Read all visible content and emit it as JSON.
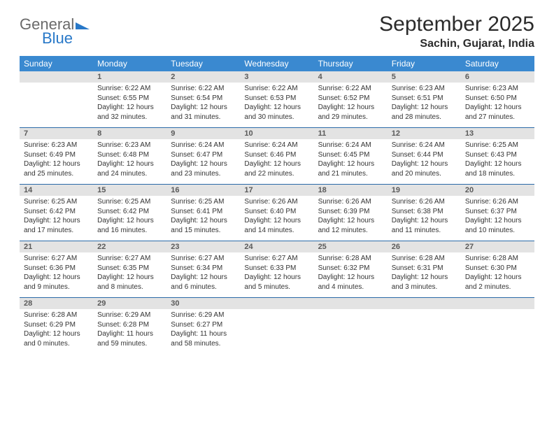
{
  "brand": {
    "word1": "General",
    "word2": "Blue"
  },
  "title": "September 2025",
  "location": "Sachin, Gujarat, India",
  "colors": {
    "header_bg": "#3a89d0",
    "header_text": "#ffffff",
    "daynum_bg": "#e3e3e3",
    "daynum_text": "#5a5a5a",
    "rule": "#2a6aa8",
    "body_text": "#333333",
    "logo_gray": "#6a6a6a",
    "logo_blue": "#2878c8"
  },
  "weekdays": [
    "Sunday",
    "Monday",
    "Tuesday",
    "Wednesday",
    "Thursday",
    "Friday",
    "Saturday"
  ],
  "weeks": [
    [
      null,
      {
        "n": "1",
        "sr": "6:22 AM",
        "ss": "6:55 PM",
        "dl": "12 hours and 32 minutes."
      },
      {
        "n": "2",
        "sr": "6:22 AM",
        "ss": "6:54 PM",
        "dl": "12 hours and 31 minutes."
      },
      {
        "n": "3",
        "sr": "6:22 AM",
        "ss": "6:53 PM",
        "dl": "12 hours and 30 minutes."
      },
      {
        "n": "4",
        "sr": "6:22 AM",
        "ss": "6:52 PM",
        "dl": "12 hours and 29 minutes."
      },
      {
        "n": "5",
        "sr": "6:23 AM",
        "ss": "6:51 PM",
        "dl": "12 hours and 28 minutes."
      },
      {
        "n": "6",
        "sr": "6:23 AM",
        "ss": "6:50 PM",
        "dl": "12 hours and 27 minutes."
      }
    ],
    [
      {
        "n": "7",
        "sr": "6:23 AM",
        "ss": "6:49 PM",
        "dl": "12 hours and 25 minutes."
      },
      {
        "n": "8",
        "sr": "6:23 AM",
        "ss": "6:48 PM",
        "dl": "12 hours and 24 minutes."
      },
      {
        "n": "9",
        "sr": "6:24 AM",
        "ss": "6:47 PM",
        "dl": "12 hours and 23 minutes."
      },
      {
        "n": "10",
        "sr": "6:24 AM",
        "ss": "6:46 PM",
        "dl": "12 hours and 22 minutes."
      },
      {
        "n": "11",
        "sr": "6:24 AM",
        "ss": "6:45 PM",
        "dl": "12 hours and 21 minutes."
      },
      {
        "n": "12",
        "sr": "6:24 AM",
        "ss": "6:44 PM",
        "dl": "12 hours and 20 minutes."
      },
      {
        "n": "13",
        "sr": "6:25 AM",
        "ss": "6:43 PM",
        "dl": "12 hours and 18 minutes."
      }
    ],
    [
      {
        "n": "14",
        "sr": "6:25 AM",
        "ss": "6:42 PM",
        "dl": "12 hours and 17 minutes."
      },
      {
        "n": "15",
        "sr": "6:25 AM",
        "ss": "6:42 PM",
        "dl": "12 hours and 16 minutes."
      },
      {
        "n": "16",
        "sr": "6:25 AM",
        "ss": "6:41 PM",
        "dl": "12 hours and 15 minutes."
      },
      {
        "n": "17",
        "sr": "6:26 AM",
        "ss": "6:40 PM",
        "dl": "12 hours and 14 minutes."
      },
      {
        "n": "18",
        "sr": "6:26 AM",
        "ss": "6:39 PM",
        "dl": "12 hours and 12 minutes."
      },
      {
        "n": "19",
        "sr": "6:26 AM",
        "ss": "6:38 PM",
        "dl": "12 hours and 11 minutes."
      },
      {
        "n": "20",
        "sr": "6:26 AM",
        "ss": "6:37 PM",
        "dl": "12 hours and 10 minutes."
      }
    ],
    [
      {
        "n": "21",
        "sr": "6:27 AM",
        "ss": "6:36 PM",
        "dl": "12 hours and 9 minutes."
      },
      {
        "n": "22",
        "sr": "6:27 AM",
        "ss": "6:35 PM",
        "dl": "12 hours and 8 minutes."
      },
      {
        "n": "23",
        "sr": "6:27 AM",
        "ss": "6:34 PM",
        "dl": "12 hours and 6 minutes."
      },
      {
        "n": "24",
        "sr": "6:27 AM",
        "ss": "6:33 PM",
        "dl": "12 hours and 5 minutes."
      },
      {
        "n": "25",
        "sr": "6:28 AM",
        "ss": "6:32 PM",
        "dl": "12 hours and 4 minutes."
      },
      {
        "n": "26",
        "sr": "6:28 AM",
        "ss": "6:31 PM",
        "dl": "12 hours and 3 minutes."
      },
      {
        "n": "27",
        "sr": "6:28 AM",
        "ss": "6:30 PM",
        "dl": "12 hours and 2 minutes."
      }
    ],
    [
      {
        "n": "28",
        "sr": "6:28 AM",
        "ss": "6:29 PM",
        "dl": "12 hours and 0 minutes."
      },
      {
        "n": "29",
        "sr": "6:29 AM",
        "ss": "6:28 PM",
        "dl": "11 hours and 59 minutes."
      },
      {
        "n": "30",
        "sr": "6:29 AM",
        "ss": "6:27 PM",
        "dl": "11 hours and 58 minutes."
      },
      null,
      null,
      null,
      null
    ]
  ],
  "labels": {
    "sunrise": "Sunrise:",
    "sunset": "Sunset:",
    "daylight": "Daylight:"
  }
}
